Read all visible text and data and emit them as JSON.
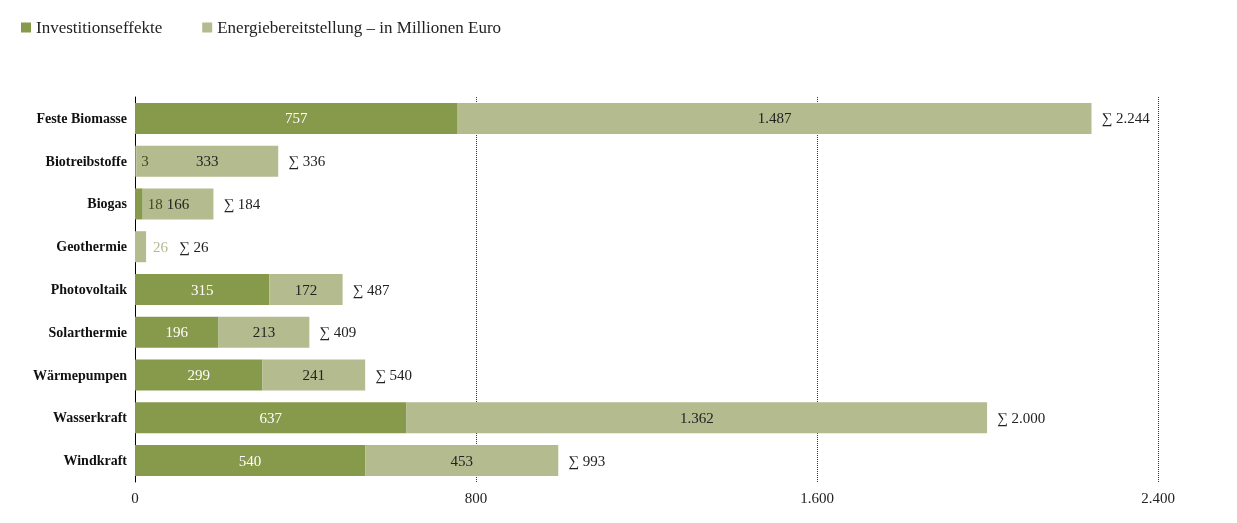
{
  "chart_data": {
    "type": "bar",
    "orientation": "horizontal",
    "stacked": true,
    "categories": [
      "Feste Biomasse",
      "Biotreibstoffe",
      "Biogas",
      "Geothermie",
      "Photovoltaik",
      "Solarthermie",
      "Wärmepumpen",
      "Wasserkraft",
      "Windkraft"
    ],
    "series": [
      {
        "name": "Investitionseffekte",
        "color": "#87994b",
        "values": [
          757,
          3,
          18,
          0,
          315,
          196,
          299,
          637,
          540
        ],
        "value_labels": [
          "757",
          "3",
          "18",
          null,
          "315",
          "196",
          "299",
          "637",
          "540"
        ]
      },
      {
        "name": "Energiebereitstellung – in Millionen Euro",
        "color": "#b3bb8f",
        "values": [
          1487,
          333,
          166,
          26,
          172,
          213,
          241,
          1362,
          453
        ],
        "value_labels": [
          "1.487",
          "333",
          "166",
          "26",
          "172",
          "213",
          "241",
          "1.362",
          "453"
        ]
      }
    ],
    "totals": [
      "∑ 2.244",
      "∑ 336",
      "∑ 184",
      "∑ 26",
      "∑ 487",
      "∑ 409",
      "∑ 540",
      "∑ 2.000",
      "∑ 993"
    ],
    "xlim": [
      0,
      2400
    ],
    "xticks": [
      0,
      800,
      {
        "value": 1600,
        "label": "1.600"
      },
      {
        "value": 2400,
        "label": "2.400"
      }
    ],
    "grid": "x",
    "legend": "top left"
  }
}
